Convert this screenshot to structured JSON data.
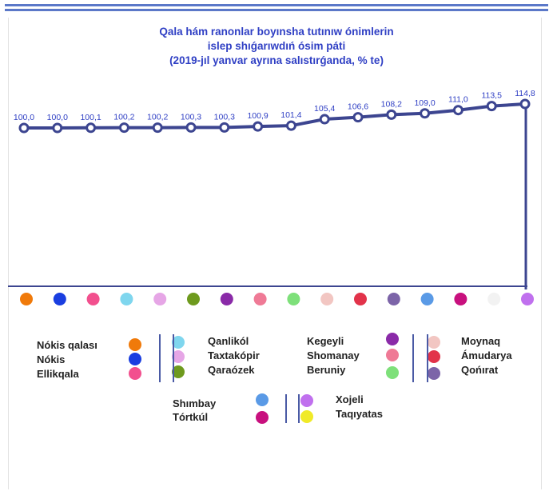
{
  "chart_data": {
    "type": "line",
    "title_lines": [
      "Qala hám ranonlar boyınsha tutınıw ónimlerin",
      "islep shıǵarıwdıń ósim páti",
      "(2019-jıl yanvar ayrına salıstırǵanda, % te)"
    ],
    "values": [
      100.0,
      100.0,
      100.1,
      100.2,
      100.2,
      100.3,
      100.3,
      100.9,
      101.4,
      105.4,
      106.6,
      108.2,
      109.0,
      111.0,
      113.5,
      114.8
    ],
    "data_labels": [
      "100,0",
      "100,0",
      "100,1",
      "100,2",
      "100,2",
      "100,3",
      "100,3",
      "100,9",
      "101,4",
      "105,4",
      "106,6",
      "108,2",
      "109,0",
      "111,0",
      "113,5",
      "114,8"
    ],
    "categories": [
      "Nókis qalası",
      "Nókis",
      "Ellikqala",
      "Qanlikól",
      "Taxtakópir",
      "Qaraózek",
      "Kegeyli",
      "Shomanay",
      "Beruniy",
      "Moynaq",
      "Ámudarya",
      "Qońırat",
      "Shımbay",
      "Tórtkúl",
      "Xojeli",
      "Taqıyatas"
    ],
    "category_colors": [
      "#f07a0a",
      "#1a3ee0",
      "#f2508e",
      "#7fd6ee",
      "#e6a6e6",
      "#6e9a1e",
      "#8a2aa8",
      "#ef7a96",
      "#7ee07a",
      "#f2c6c2",
      "#e2334a",
      "#7c64a8",
      "#5a9ae6",
      "#c8107e",
      "#f2f2f2",
      "#c070ee"
    ],
    "legend_colors": [
      "#f07a0a",
      "#1a3ee0",
      "#f2508e",
      "#7fd6ee",
      "#e6a6e6",
      "#6e9a1e",
      "#8a2aa8",
      "#ef7a96",
      "#7ee07a",
      "#f2c6c2",
      "#e2334a",
      "#7c64a8",
      "#5a9ae6",
      "#c8107e",
      "#c070ee",
      "#f0ea28"
    ],
    "line_color": "#3c4590",
    "label_color": "#2f3fc4",
    "legend_placement": "bottom",
    "grid": false
  }
}
